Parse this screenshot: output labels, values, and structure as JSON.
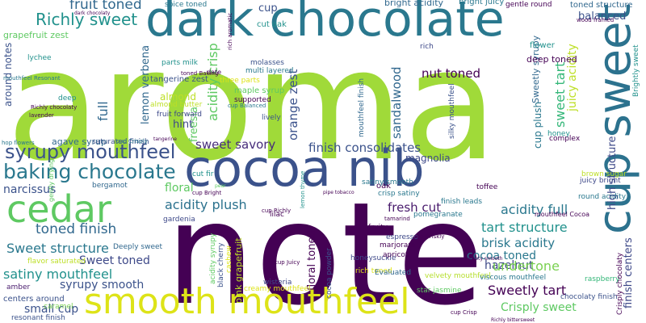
{
  "words": [
    {
      "text": "aroma",
      "color": "#a0da39"
    },
    {
      "text": "note",
      "color": "#440154"
    },
    {
      "text": "dark chocolate",
      "color": "#2a788e"
    },
    {
      "text": "cocoa nib",
      "color": "#3b528b"
    },
    {
      "text": "cup sweet",
      "color": "#2c728e"
    },
    {
      "text": "smooth mouthfeel",
      "color": "#dde318"
    },
    {
      "text": "cedar",
      "color": "#5ec962"
    },
    {
      "text": "baking chocolate",
      "color": "#2a788e"
    },
    {
      "text": "syrupy mouthfeel",
      "color": "#3b528b"
    },
    {
      "text": "Richly sweet",
      "color": "#21918c"
    },
    {
      "text": "fruit toned",
      "color": "#31688e"
    },
    {
      "text": "finish consolidates",
      "color": "#3b528b"
    },
    {
      "text": "sweet savory",
      "color": "#472d7b"
    },
    {
      "text": "acidity plush",
      "color": "#2c728e"
    },
    {
      "text": "acidity full",
      "color": "#2a788e"
    },
    {
      "text": "tart structure",
      "color": "#21918c"
    },
    {
      "text": "Sweet structure",
      "color": "#2a788e"
    },
    {
      "text": "toned finish",
      "color": "#31688e"
    },
    {
      "text": "satiny mouthfeel",
      "color": "#21918c"
    },
    {
      "text": "Sweet toned",
      "color": "#3e4989"
    },
    {
      "text": "syrupy smooth",
      "color": "#3b528b"
    },
    {
      "text": "small cup",
      "color": "#3b528b"
    },
    {
      "text": "Crisply sweet",
      "color": "#5ec962"
    },
    {
      "text": "Sweetly tart",
      "color": "#440154"
    },
    {
      "text": "cocoa toned",
      "color": "#2a788e"
    },
    {
      "text": "hazelnut",
      "color": "#3e4989"
    },
    {
      "text": "undertone",
      "color": "#7ad151"
    },
    {
      "text": "brisk acidity",
      "color": "#2a788e"
    },
    {
      "text": "fresh cut",
      "color": "#481a6c"
    },
    {
      "text": "narcissus",
      "color": "#3b528b"
    },
    {
      "text": "nut toned",
      "color": "#440154"
    },
    {
      "text": "sandalwood",
      "color": "#31688e"
    },
    {
      "text": "balanced",
      "color": "#3b528b"
    },
    {
      "text": "orange zest",
      "color": "#3b528b"
    },
    {
      "text": "acidity crisp",
      "color": "#5ec962"
    },
    {
      "text": "lemon verbena",
      "color": "#31688e"
    },
    {
      "text": "freesia",
      "color": "#5ec962"
    },
    {
      "text": "hint",
      "color": "#3e4989"
    },
    {
      "text": "almond",
      "color": "#bddf26"
    },
    {
      "text": "full",
      "color": "#31688e"
    },
    {
      "text": "sweet tart",
      "color": "#35b779"
    },
    {
      "text": "juicy acidity",
      "color": "#bddf26"
    },
    {
      "text": "floral",
      "color": "#5ec962"
    },
    {
      "text": "magnolia",
      "color": "#3e4989"
    },
    {
      "text": "high structure",
      "color": "#3e4989"
    },
    {
      "text": "finish centers",
      "color": "#3e4989"
    },
    {
      "text": "grapefruit zest",
      "color": "#5ec962"
    },
    {
      "text": "agave syrup",
      "color": "#31688e"
    },
    {
      "text": "around notes",
      "color": "#3b528b"
    },
    {
      "text": "floral toned",
      "color": "#440154"
    },
    {
      "text": "pink grapefruit",
      "color": "#bddf26"
    },
    {
      "text": "bright acidity",
      "color": "#31688e"
    },
    {
      "text": "spice toned",
      "color": "#2a788e"
    },
    {
      "text": "bright juicy",
      "color": "#2a788e"
    },
    {
      "text": "toned structure",
      "color": "#31688e"
    },
    {
      "text": "gentle round",
      "color": "#440154"
    },
    {
      "text": "cup",
      "color": "#3b528b"
    },
    {
      "text": "cut oak",
      "color": "#21918c"
    },
    {
      "text": "Sweetly syrupy",
      "color": "#31688e"
    },
    {
      "text": "cup plush",
      "color": "#2a788e"
    },
    {
      "text": "maple syrup",
      "color": "#5ec962"
    },
    {
      "text": "tangerine zest",
      "color": "#3b528b"
    },
    {
      "text": "three parts",
      "color": "#dde318"
    },
    {
      "text": "parts milk",
      "color": "#21918c"
    },
    {
      "text": "multi layered",
      "color": "#2a788e"
    },
    {
      "text": "molasses",
      "color": "#3b528b"
    },
    {
      "text": "rich",
      "color": "#3e4989"
    },
    {
      "text": "deep toned",
      "color": "#440154"
    },
    {
      "text": "flower",
      "color": "#21918c"
    },
    {
      "text": "supported",
      "color": "#440154"
    },
    {
      "text": "lively",
      "color": "#3b528b"
    },
    {
      "text": "fruit forward",
      "color": "#3e4989"
    },
    {
      "text": "almond butter",
      "color": "#bddf26"
    },
    {
      "text": "lychee",
      "color": "#21918c"
    },
    {
      "text": "saturated finish",
      "color": "#3b528b"
    },
    {
      "text": "bergamot",
      "color": "#31688e"
    },
    {
      "text": "cut fir",
      "color": "#21918c"
    },
    {
      "text": "lilac",
      "color": "#440154"
    },
    {
      "text": "oak",
      "color": "#440154"
    },
    {
      "text": "crisp satiny",
      "color": "#2a788e"
    },
    {
      "text": "finish leads",
      "color": "#2a788e"
    },
    {
      "text": "round acidity",
      "color": "#2a788e"
    },
    {
      "text": "brown sugar",
      "color": "#bddf26"
    },
    {
      "text": "juicy bright",
      "color": "#3e4989"
    },
    {
      "text": "gardenia",
      "color": "#3e4989"
    },
    {
      "text": "raspberry",
      "color": "#35b779"
    },
    {
      "text": "caramel",
      "color": "#7ad151"
    },
    {
      "text": "Deeply sweet",
      "color": "#31688e"
    },
    {
      "text": "flavor saturated",
      "color": "#bddf26"
    },
    {
      "text": "amber",
      "color": "#481a6c"
    },
    {
      "text": "centers around",
      "color": "#3b528b"
    },
    {
      "text": "resonant finish",
      "color": "#3b528b"
    },
    {
      "text": "acidity syrupy",
      "color": "#5ec962"
    },
    {
      "text": "black cherry",
      "color": "#3b528b"
    },
    {
      "text": "cashew",
      "color": "#dde318"
    },
    {
      "text": "wisteria",
      "color": "#3e4989"
    },
    {
      "text": "creamy mouthfeel",
      "color": "#dde318"
    },
    {
      "text": "cocoa powder",
      "color": "#3b528b"
    },
    {
      "text": "honeysuckle",
      "color": "#3e4989"
    },
    {
      "text": "rich toned",
      "color": "#dde318"
    },
    {
      "text": "marjoram",
      "color": "#440154"
    },
    {
      "text": "apricot",
      "color": "#440154"
    },
    {
      "text": "espresso",
      "color": "#3e4989"
    },
    {
      "text": "fruity",
      "color": "#440154"
    },
    {
      "text": "pomegranate",
      "color": "#2a788e"
    },
    {
      "text": "Evaluated",
      "color": "#31688e"
    },
    {
      "text": "velvety mouthfeel",
      "color": "#b5de2b"
    },
    {
      "text": "star jasmine",
      "color": "#5ec962"
    },
    {
      "text": "chocolaty finish",
      "color": "#3b528b"
    },
    {
      "text": "viscous mouthfeel",
      "color": "#2a788e"
    },
    {
      "text": "mouthfeel Cocoa",
      "color": "#440154"
    },
    {
      "text": "satiny smooth",
      "color": "#2a788e"
    },
    {
      "text": "honey",
      "color": "#21918c"
    },
    {
      "text": "complex",
      "color": "#440154"
    },
    {
      "text": "toffee",
      "color": "#440154"
    },
    {
      "text": "Crisply chocolaty",
      "color": "#440154"
    },
    {
      "text": "Brightly sweet",
      "color": "#21918c"
    },
    {
      "text": "mouthfeel finish",
      "color": "#31688e"
    },
    {
      "text": "silky mouthfeel",
      "color": "#3b528b"
    },
    {
      "text": "cup Crisply",
      "color": "#2a788e"
    },
    {
      "text": "hop flowers",
      "color": "#2a788e"
    },
    {
      "text": "tamarind",
      "color": "#440154"
    },
    {
      "text": "Richly chocolaty",
      "color": "#440154"
    },
    {
      "text": "lavender",
      "color": "#440154"
    },
    {
      "text": "mouthfeel Resonant",
      "color": "#2a788e"
    },
    {
      "text": "cup Richly",
      "color": "#440154"
    },
    {
      "text": "cup Bright",
      "color": "#440154"
    },
    {
      "text": "cup Juicy",
      "color": "#440154"
    },
    {
      "text": "cup Briskly",
      "color": "#440154"
    },
    {
      "text": "cup Crisp",
      "color": "#440154"
    },
    {
      "text": "dark chocolaty",
      "color": "#440154"
    },
    {
      "text": "gently drying",
      "color": "#5ec962"
    },
    {
      "text": "velvety smooth",
      "color": "#440154"
    },
    {
      "text": "Richly bittersweet",
      "color": "#440154"
    },
    {
      "text": "deep",
      "color": "#21918c"
    },
    {
      "text": "rich aromatic",
      "color": "#440154"
    },
    {
      "text": "cup Balanced",
      "color": "#2a788e"
    },
    {
      "text": "toned Baking",
      "color": "#440154"
    },
    {
      "text": "date",
      "color": "#440154"
    },
    {
      "text": "pear",
      "color": "#5ec962"
    },
    {
      "text": "tangerine",
      "color": "#440154"
    },
    {
      "text": "pipe tobacco",
      "color": "#440154"
    },
    {
      "text": "lemon thyme",
      "color": "#21918c"
    },
    {
      "text": "wood framed",
      "color": "#440154"
    }
  ]
}
